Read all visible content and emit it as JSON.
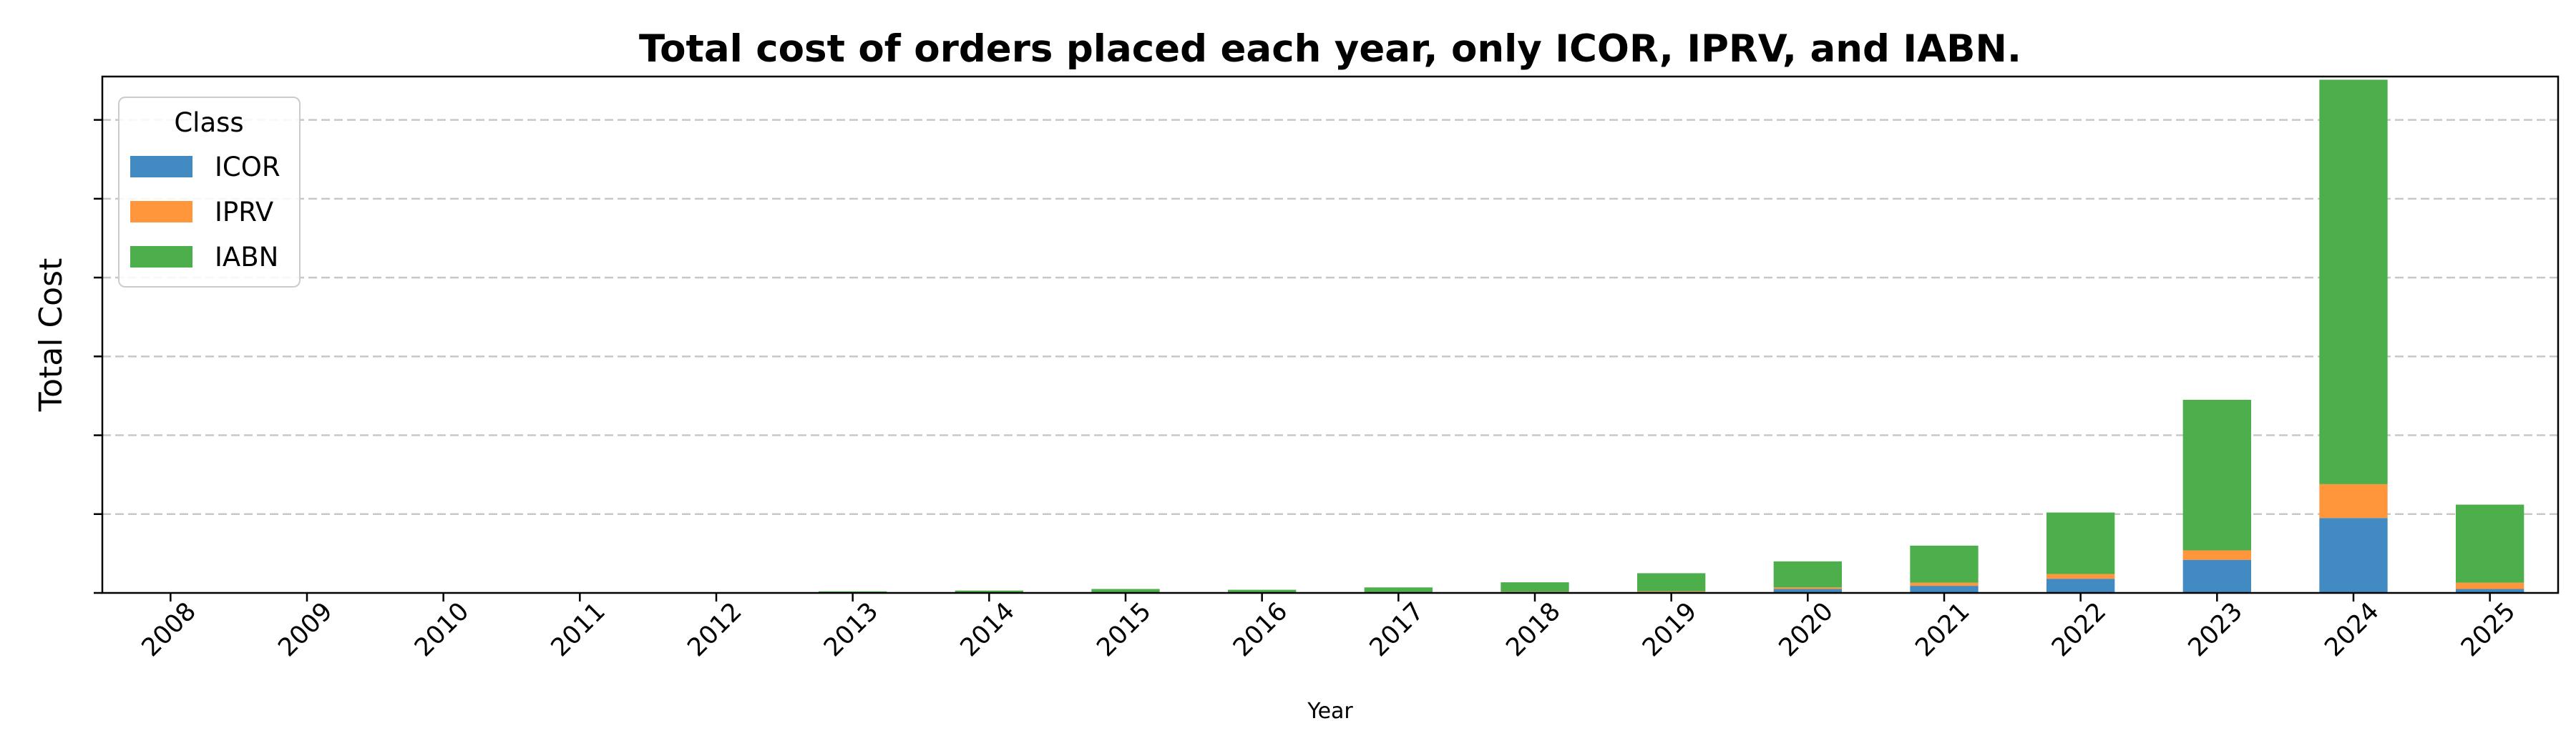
{
  "chart_data": {
    "type": "bar",
    "stacked": true,
    "title": "Total cost of orders placed each year, only ICOR, IPRV, and IABN.",
    "xlabel": "Year",
    "ylabel": "Total Cost",
    "y_tick_labels_shown": false,
    "y_gridlines": [
      1,
      2,
      3,
      4,
      5,
      6
    ],
    "ylim": [
      0,
      6.55
    ],
    "grid": "y, dashed",
    "legend": {
      "title": "Class",
      "placement": "upper-left"
    },
    "categories": [
      "2008",
      "2009",
      "2010",
      "2011",
      "2012",
      "2013",
      "2014",
      "2015",
      "2016",
      "2017",
      "2018",
      "2019",
      "2020",
      "2021",
      "2022",
      "2023",
      "2024",
      "2025"
    ],
    "series": [
      {
        "name": "ICOR",
        "color": "#428bc2",
        "values": [
          0,
          0,
          0,
          0,
          0,
          0,
          0,
          0,
          0,
          0,
          0.01,
          0.01,
          0.05,
          0.09,
          0.18,
          0.42,
          0.95,
          0.05
        ]
      },
      {
        "name": "IPRV",
        "color": "#ff963b",
        "values": [
          0,
          0,
          0,
          0,
          0,
          0,
          0,
          0,
          0,
          0,
          0.005,
          0.01,
          0.02,
          0.04,
          0.06,
          0.12,
          0.43,
          0.08
        ]
      },
      {
        "name": "IABN",
        "color": "#4caf4c",
        "values": [
          0.002,
          0.002,
          0.002,
          0.002,
          0.004,
          0.02,
          0.03,
          0.05,
          0.04,
          0.07,
          0.12,
          0.23,
          0.33,
          0.47,
          0.78,
          1.91,
          5.13,
          0.99
        ]
      }
    ]
  }
}
